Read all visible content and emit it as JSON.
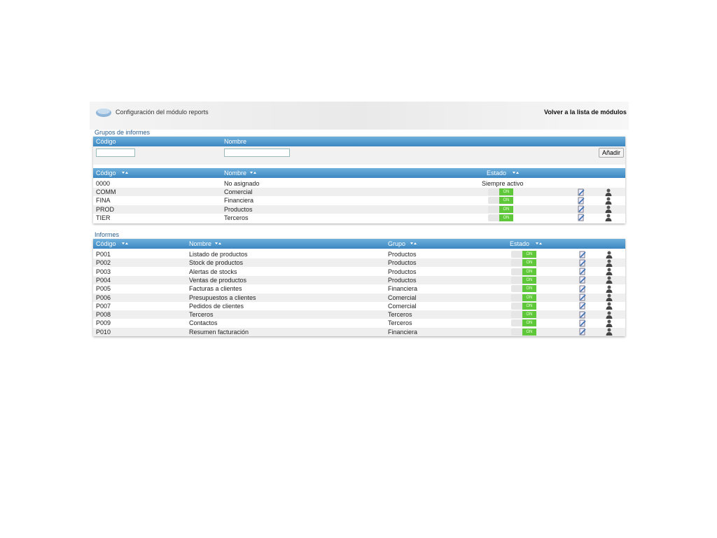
{
  "header": {
    "title": "Configuración del módulo reports",
    "back_link": "Volver a la lista de módulos"
  },
  "groups": {
    "title": "Grupos de informes",
    "form": {
      "columns": [
        "Código",
        "Nombre"
      ],
      "button": "Añadir"
    },
    "table": {
      "columns": [
        "Código",
        "Nombre",
        "Estado"
      ],
      "toggle_label": "ON",
      "rows": [
        {
          "code": "0000",
          "name": "No asignado",
          "status": "Siempre activo",
          "toggle": false
        },
        {
          "code": "COMM",
          "name": "Comercial",
          "toggle": true
        },
        {
          "code": "FINA",
          "name": "Financiera",
          "toggle": true
        },
        {
          "code": "PROD",
          "name": "Productos",
          "toggle": true
        },
        {
          "code": "TIER",
          "name": "Terceros",
          "toggle": true
        }
      ]
    }
  },
  "reports": {
    "title": "Informes",
    "table": {
      "columns": [
        "Código",
        "Nombre",
        "Grupo",
        "Estado"
      ],
      "toggle_label": "ON",
      "rows": [
        {
          "code": "P001",
          "name": "Listado de productos",
          "group": "Productos"
        },
        {
          "code": "P002",
          "name": "Stock de productos",
          "group": "Productos"
        },
        {
          "code": "P003",
          "name": "Alertas de stocks",
          "group": "Productos"
        },
        {
          "code": "P004",
          "name": "Ventas de productos",
          "group": "Productos"
        },
        {
          "code": "P005",
          "name": "Facturas a clientes",
          "group": "Financiera"
        },
        {
          "code": "P006",
          "name": "Presupuestos a clientes",
          "group": "Comercial"
        },
        {
          "code": "P007",
          "name": "Pedidos de clientes",
          "group": "Comercial"
        },
        {
          "code": "P008",
          "name": "Terceros",
          "group": "Terceros"
        },
        {
          "code": "P009",
          "name": "Contactos",
          "group": "Terceros"
        },
        {
          "code": "P010",
          "name": "Resumen facturación",
          "group": "Financiera"
        }
      ]
    }
  }
}
